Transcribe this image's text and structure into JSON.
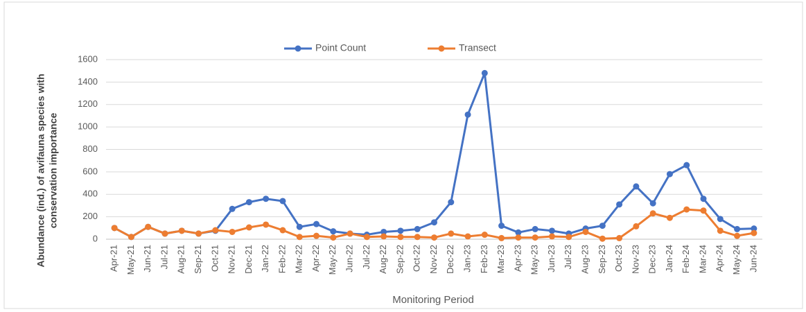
{
  "chart_data": {
    "type": "line",
    "xlabel": "Monitoring Period",
    "ylabel": [
      "Abundance (ind.) of avifauna species  with",
      "conservation importance"
    ],
    "categories": [
      "Apr-21",
      "May-21",
      "Jun-21",
      "Jul-21",
      "Aug-21",
      "Sep-21",
      "Oct-21",
      "Nov-21",
      "Dec-21",
      "Jan-22",
      "Feb-22",
      "Mar-22",
      "Apr-22",
      "May-22",
      "Jun-22",
      "Jul-22",
      "Aug-22",
      "Sep-22",
      "Oct-22",
      "Nov-22",
      "Dec-22",
      "Jan-23",
      "Feb-23",
      "Mar-23",
      "Apr-23",
      "May-23",
      "Jun-23",
      "Jul-23",
      "Aug-23",
      "Sep-23",
      "Oct-23",
      "Nov-23",
      "Dec-23",
      "Jan-24",
      "Feb-24",
      "Mar-24",
      "Apr-24",
      "May-24",
      "Jun-24"
    ],
    "series": [
      {
        "name": "Point Count",
        "color": "#4472c4",
        "values": [
          100,
          20,
          110,
          50,
          75,
          50,
          75,
          270,
          330,
          360,
          340,
          110,
          135,
          70,
          50,
          40,
          65,
          75,
          90,
          150,
          330,
          1110,
          1480,
          120,
          60,
          90,
          75,
          50,
          95,
          120,
          310,
          470,
          320,
          580,
          660,
          360,
          180,
          90,
          95
        ]
      },
      {
        "name": "Transect",
        "color": "#ed7d31",
        "values": [
          100,
          20,
          110,
          50,
          75,
          50,
          80,
          65,
          105,
          130,
          80,
          20,
          30,
          15,
          50,
          20,
          25,
          20,
          20,
          15,
          50,
          25,
          40,
          10,
          15,
          15,
          25,
          20,
          65,
          5,
          10,
          115,
          230,
          190,
          265,
          255,
          75,
          30,
          55
        ]
      }
    ],
    "ylim": [
      0,
      1600
    ],
    "yticks": [
      0,
      200,
      400,
      600,
      800,
      1000,
      1200,
      1400,
      1600
    ],
    "grid": true,
    "legend": "top"
  }
}
